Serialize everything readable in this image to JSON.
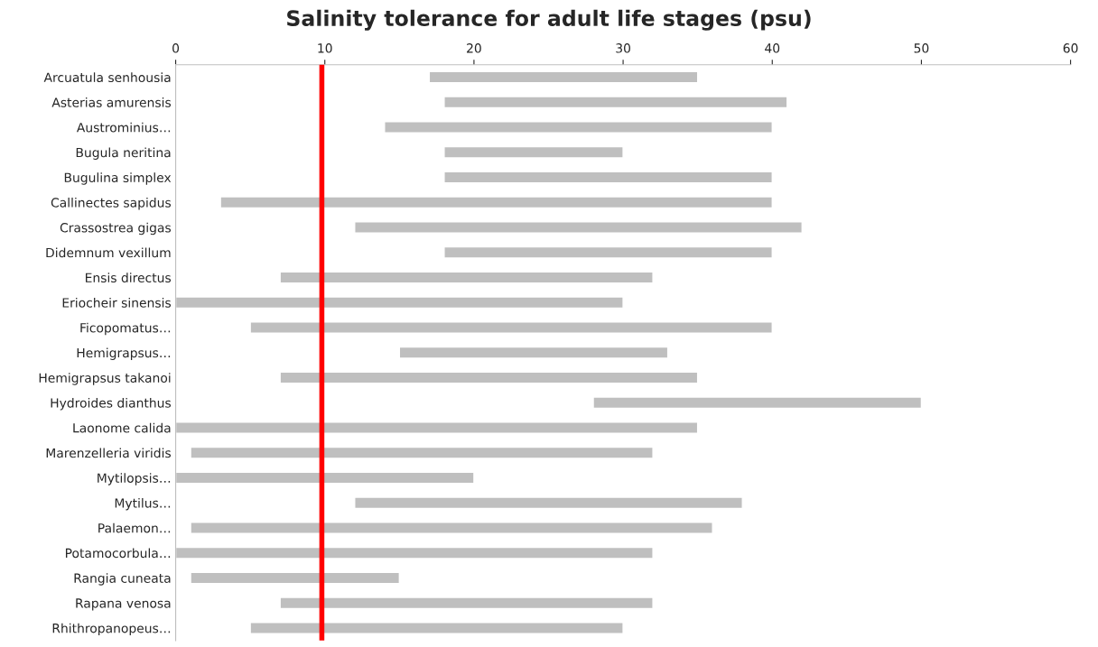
{
  "chart_data": {
    "type": "bar",
    "orientation": "horizontal",
    "title": "Salinity tolerance for adult life stages (psu)",
    "categories": [
      "Arcuatula senhousia",
      "Asterias amurensis",
      "Austrominius…",
      "Bugula neritina",
      "Bugulina simplex",
      "Callinectes sapidus",
      "Crassostrea gigas",
      "Didemnum vexillum",
      "Ensis directus",
      "Eriocheir sinensis",
      "Ficopomatus…",
      "Hemigrapsus…",
      "Hemigrapsus takanoi",
      "Hydroides dianthus",
      "Laonome calida",
      "Marenzelleria viridis",
      "Mytilopsis…",
      "Mytilus…",
      "Palaemon…",
      "Potamocorbula…",
      "Rangia cuneata",
      "Rapana venosa",
      "Rhithropanopeus…"
    ],
    "base": [
      17,
      18,
      14,
      18,
      18,
      3,
      12,
      18,
      7,
      0,
      5,
      15,
      7,
      28,
      0,
      1,
      0,
      12,
      1,
      0,
      1,
      7,
      5
    ],
    "values": [
      18,
      23,
      26,
      12,
      22,
      37,
      30,
      22,
      25,
      30,
      35,
      18,
      28,
      22,
      35,
      31,
      20,
      26,
      35,
      32,
      14,
      25,
      25
    ],
    "color": "#bfbfbf",
    "xlim": [
      0,
      60
    ],
    "xticks": [
      0,
      10,
      20,
      30,
      40,
      50,
      60
    ],
    "ref_lines": [
      {
        "axis": "x",
        "value": 9.8,
        "color": "#ff0000"
      }
    ],
    "grid": false,
    "legend": false
  }
}
